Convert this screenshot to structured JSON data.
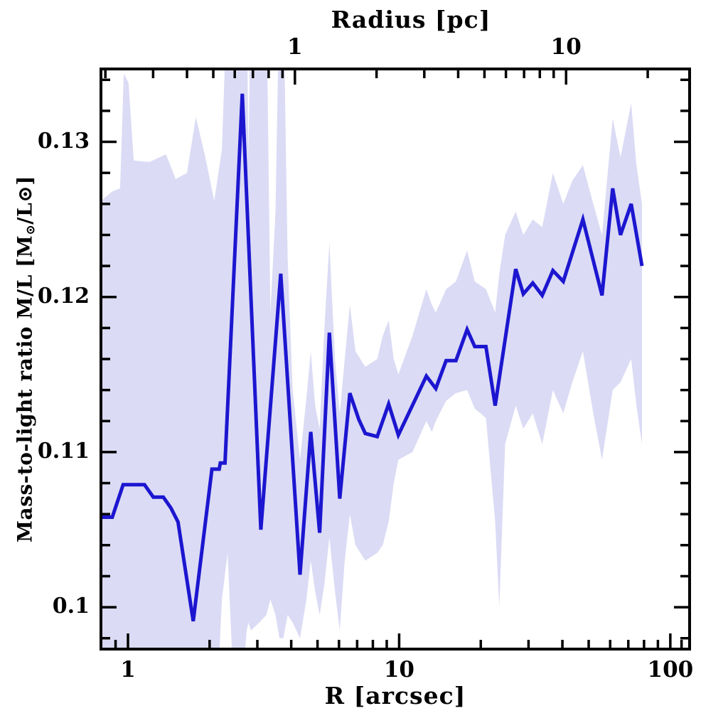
{
  "figure": {
    "top_title": "Radius [pc]",
    "bottom_title": "R [arcsec]",
    "ylabel_parts": {
      "main": "Mass-to-light ratio M/L [M",
      "sun_sub": "⊙",
      "mid": "/L",
      "sun_full": "⊙",
      "end": "]"
    }
  },
  "colors": {
    "line": "#1c16d0",
    "band": "#dbdbf5",
    "axis": "#000000",
    "background": "#ffffff"
  },
  "chart_data": {
    "type": "line",
    "title": "Radius [pc]",
    "xlabel": "R [arcsec]",
    "ylabel": "Mass-to-light ratio M/L [Msun/Lsun]",
    "x_scale": "log",
    "grid": false,
    "legend": "none",
    "x_range_arcsec": [
      0.795,
      117.8
    ],
    "y_range": [
      0.0973,
      0.1347
    ],
    "bottom_axis": {
      "unit": "arcsec",
      "major_ticks": [
        1,
        10,
        100
      ],
      "major_labels": [
        "1",
        "10",
        "100"
      ],
      "minor_ticks": [
        0.9,
        2,
        3,
        4,
        5,
        6,
        7,
        8,
        9,
        20,
        30,
        40,
        50,
        60,
        70,
        80,
        90,
        110
      ]
    },
    "top_axis": {
      "unit": "pc",
      "arcsec_per_pc": 4.127,
      "major_ticks": [
        1,
        10
      ],
      "major_labels": [
        "1",
        "10"
      ],
      "minor_ticks": [
        0.2,
        0.3,
        0.4,
        0.5,
        0.6,
        0.7,
        0.8,
        0.9,
        2,
        3,
        4,
        5,
        6,
        7,
        8,
        9,
        20
      ]
    },
    "y_axis": {
      "major_ticks": [
        0.1,
        0.11,
        0.12,
        0.13
      ],
      "major_labels": [
        "0.1",
        "0.11",
        "0.12",
        "0.13"
      ],
      "minor_ticks": [
        0.098,
        0.102,
        0.104,
        0.106,
        0.108,
        0.112,
        0.114,
        0.116,
        0.118,
        0.122,
        0.124,
        0.126,
        0.128,
        0.132,
        0.134
      ]
    },
    "series": [
      {
        "name": "mass-to-light ratio profile",
        "style": "line",
        "color": "#1c16d0",
        "points": [
          [
            0.795,
            0.1058
          ],
          [
            0.875,
            0.1058
          ],
          [
            0.96,
            0.1079
          ],
          [
            1.15,
            0.1079
          ],
          [
            1.24,
            0.1071
          ],
          [
            1.35,
            0.1071
          ],
          [
            1.44,
            0.1064
          ],
          [
            1.53,
            0.1055
          ],
          [
            1.74,
            0.0991
          ],
          [
            2.04,
            0.1089
          ],
          [
            2.17,
            0.1089
          ],
          [
            2.19,
            0.1093
          ],
          [
            2.28,
            0.1093
          ],
          [
            2.64,
            0.1331
          ],
          [
            3.09,
            0.105
          ],
          [
            3.66,
            0.1215
          ],
          [
            4.31,
            0.1021
          ],
          [
            4.72,
            0.1113
          ],
          [
            5.09,
            0.1048
          ],
          [
            5.53,
            0.1177
          ],
          [
            6.04,
            0.107
          ],
          [
            6.58,
            0.1138
          ],
          [
            7.1,
            0.1121
          ],
          [
            7.5,
            0.1112
          ],
          [
            8.3,
            0.111
          ],
          [
            9.15,
            0.1131
          ],
          [
            9.93,
            0.1111
          ],
          [
            12.6,
            0.1149
          ],
          [
            13.65,
            0.1141
          ],
          [
            14.9,
            0.1159
          ],
          [
            16.2,
            0.1159
          ],
          [
            17.8,
            0.1179
          ],
          [
            19.0,
            0.1168
          ],
          [
            20.9,
            0.1168
          ],
          [
            22.6,
            0.113
          ],
          [
            26.9,
            0.1218
          ],
          [
            28.7,
            0.1202
          ],
          [
            31.1,
            0.1209
          ],
          [
            33.7,
            0.1201
          ],
          [
            36.9,
            0.1217
          ],
          [
            40.3,
            0.121
          ],
          [
            47.6,
            0.125
          ],
          [
            56.0,
            0.1201
          ],
          [
            61.3,
            0.127
          ],
          [
            65.5,
            0.124
          ],
          [
            71.7,
            0.126
          ],
          [
            78.6,
            0.122
          ]
        ]
      },
      {
        "name": "uncertainty band",
        "style": "band",
        "color": "#dbdbf5",
        "points_lo_hi": [
          [
            0.795,
            0.09,
            0.1262
          ],
          [
            0.875,
            0.09,
            0.1268
          ],
          [
            0.935,
            0.09,
            0.127
          ],
          [
            0.965,
            0.09,
            0.1344
          ],
          [
            1.005,
            0.09,
            0.1338
          ],
          [
            1.05,
            0.09,
            0.1288
          ],
          [
            1.2,
            0.09,
            0.1287
          ],
          [
            1.38,
            0.09,
            0.1292
          ],
          [
            1.5,
            0.09,
            0.1276
          ],
          [
            1.65,
            0.09,
            0.128
          ],
          [
            1.78,
            0.09,
            0.1316
          ],
          [
            1.93,
            0.09,
            0.129
          ],
          [
            2.08,
            0.09,
            0.1262
          ],
          [
            2.22,
            0.1005,
            0.1295
          ],
          [
            2.33,
            0.1035,
            0.14
          ],
          [
            2.45,
            0.095,
            0.14
          ],
          [
            2.64,
            0.095,
            0.14
          ],
          [
            2.74,
            0.0985,
            0.14
          ],
          [
            2.78,
            0.099,
            0.129
          ],
          [
            2.84,
            0.0985,
            0.14
          ],
          [
            3.05,
            0.099,
            0.14
          ],
          [
            3.24,
            0.0995,
            0.14
          ],
          [
            3.35,
            0.1005,
            0.119
          ],
          [
            3.5,
            0.0995,
            0.1255
          ],
          [
            3.62,
            0.098,
            0.14
          ],
          [
            3.74,
            0.098,
            0.14
          ],
          [
            3.88,
            0.0995,
            0.1225
          ],
          [
            4.05,
            0.099,
            0.114
          ],
          [
            4.31,
            0.098,
            0.1095
          ],
          [
            4.55,
            0.1005,
            0.1135
          ],
          [
            4.72,
            0.103,
            0.1165
          ],
          [
            4.9,
            0.101,
            0.113
          ],
          [
            5.09,
            0.0995,
            0.1115
          ],
          [
            5.3,
            0.1015,
            0.118
          ],
          [
            5.53,
            0.1045,
            0.1235
          ],
          [
            5.8,
            0.101,
            0.116
          ],
          [
            6.04,
            0.0985,
            0.1125
          ],
          [
            6.3,
            0.103,
            0.116
          ],
          [
            6.58,
            0.106,
            0.1195
          ],
          [
            6.9,
            0.104,
            0.1165
          ],
          [
            7.5,
            0.103,
            0.1155
          ],
          [
            8.3,
            0.1035,
            0.116
          ],
          [
            8.7,
            0.104,
            0.1175
          ],
          [
            9.15,
            0.1055,
            0.1185
          ],
          [
            9.55,
            0.108,
            0.116
          ],
          [
            9.93,
            0.1095,
            0.115
          ],
          [
            11.2,
            0.11,
            0.1175
          ],
          [
            12.6,
            0.112,
            0.1205
          ],
          [
            13.2,
            0.1113,
            0.1195
          ],
          [
            13.65,
            0.112,
            0.119
          ],
          [
            14.9,
            0.1133,
            0.1205
          ],
          [
            16.2,
            0.1138,
            0.121
          ],
          [
            17.8,
            0.114,
            0.123
          ],
          [
            19.0,
            0.1128,
            0.121
          ],
          [
            20.9,
            0.1122,
            0.1205
          ],
          [
            22.6,
            0.1055,
            0.119
          ],
          [
            23.4,
            0.1,
            0.1215
          ],
          [
            24.6,
            0.1105,
            0.124
          ],
          [
            26.9,
            0.113,
            0.1255
          ],
          [
            28.7,
            0.1115,
            0.124
          ],
          [
            31.1,
            0.1125,
            0.125
          ],
          [
            33.7,
            0.1105,
            0.1245
          ],
          [
            36.9,
            0.114,
            0.128
          ],
          [
            40.3,
            0.1125,
            0.126
          ],
          [
            43.5,
            0.1145,
            0.1275
          ],
          [
            47.6,
            0.1165,
            0.1285
          ],
          [
            52.0,
            0.1125,
            0.126
          ],
          [
            56.0,
            0.1095,
            0.124
          ],
          [
            61.3,
            0.114,
            0.1315
          ],
          [
            65.5,
            0.1145,
            0.129
          ],
          [
            71.7,
            0.116,
            0.1325
          ],
          [
            75.0,
            0.113,
            0.1285
          ],
          [
            78.6,
            0.1105,
            0.126
          ]
        ]
      }
    ]
  }
}
